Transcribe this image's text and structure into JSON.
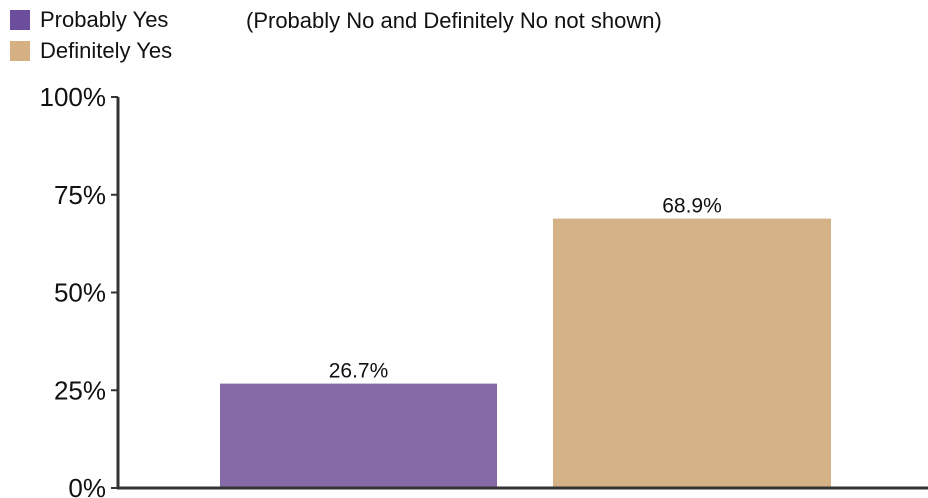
{
  "legend": {
    "items": [
      {
        "label": "Probably Yes",
        "color": "#6c4c9c"
      },
      {
        "label": "Definitely Yes",
        "color": "#d4b083"
      }
    ],
    "note": "(Probably No and Definitely No not shown)"
  },
  "chart_data": {
    "type": "bar",
    "title": "",
    "xlabel": "",
    "ylabel": "",
    "ylim": [
      0,
      100
    ],
    "yticks": [
      0,
      25,
      50,
      75,
      100
    ],
    "ytick_labels": [
      "0%",
      "25%",
      "50%",
      "75%",
      "100%"
    ],
    "categories": [
      "Probably Yes",
      "Definitely Yes"
    ],
    "values": [
      26.7,
      68.9
    ],
    "value_labels": [
      "26.7%",
      "68.9%"
    ],
    "colors": [
      "#866aa8",
      "#d4b186"
    ],
    "legend_position": "top-left",
    "grid": false
  }
}
